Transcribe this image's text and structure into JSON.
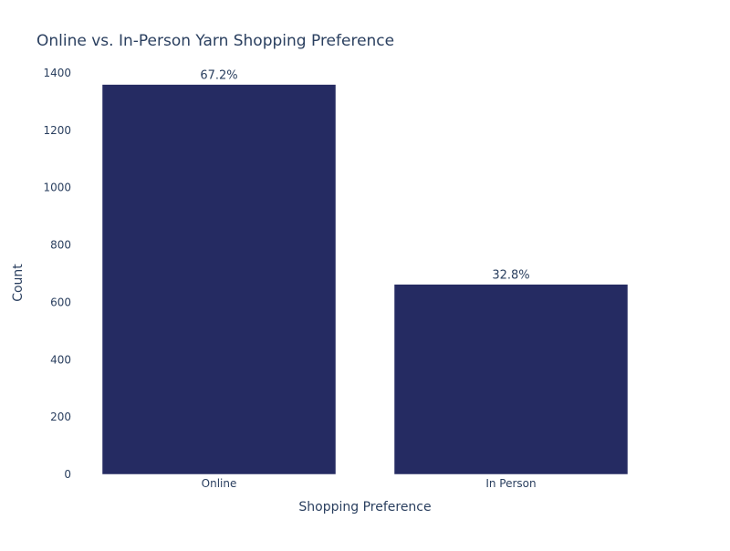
{
  "chart_data": {
    "type": "bar",
    "title": "Online vs. In-Person Yarn Shopping Preference",
    "xlabel": "Shopping Preference",
    "ylabel": "Count",
    "categories": [
      "Online",
      "In Person"
    ],
    "values": [
      1360,
      663
    ],
    "data_labels": [
      "67.2%",
      "32.8%"
    ],
    "ylim": [
      0,
      1400
    ],
    "yticks": [
      0,
      200,
      400,
      600,
      800,
      1000,
      1200,
      1400
    ],
    "bar_color": "#252b62",
    "grid": false,
    "legend": "none"
  }
}
